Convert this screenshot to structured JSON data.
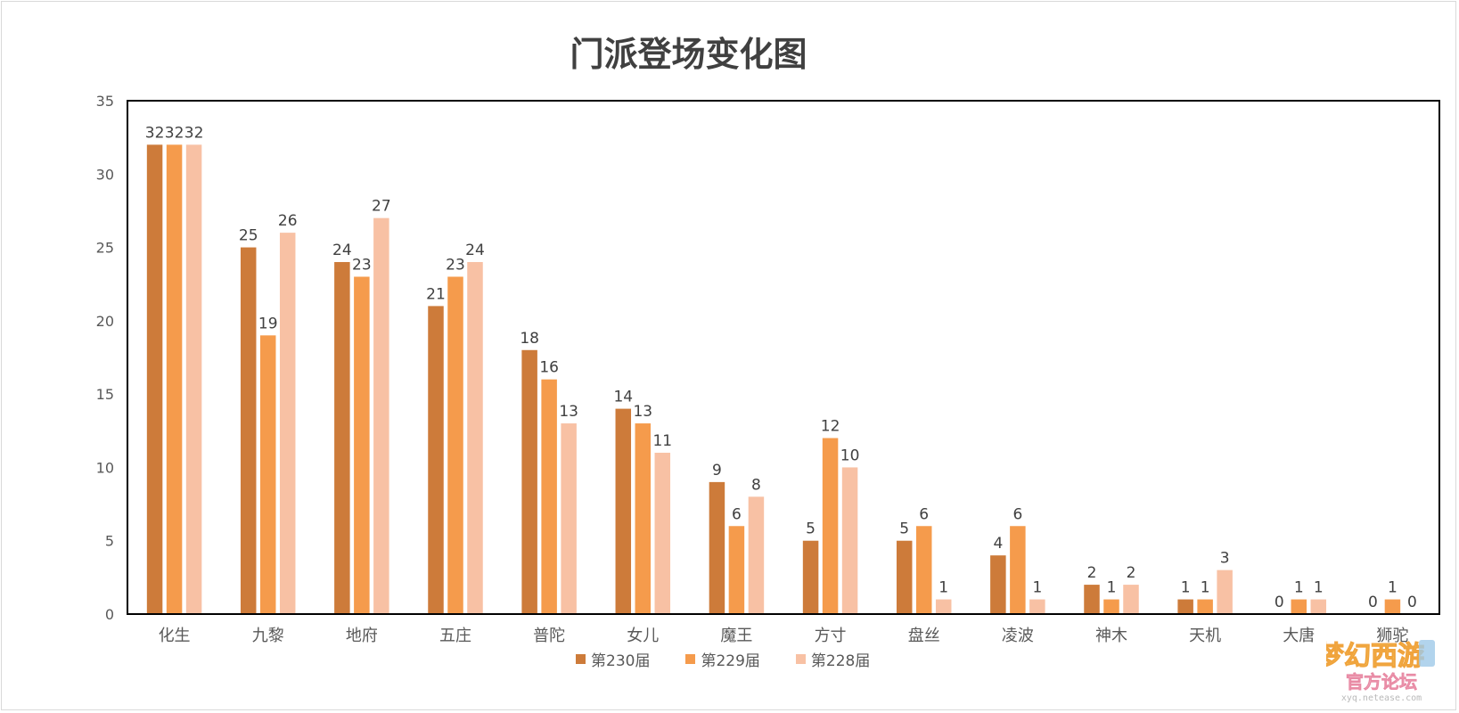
{
  "chart_data": {
    "type": "bar",
    "title": "门派登场变化图",
    "categories": [
      "化生",
      "九黎",
      "地府",
      "五庄",
      "普陀",
      "女儿",
      "魔王",
      "方寸",
      "盘丝",
      "凌波",
      "神木",
      "天机",
      "大唐",
      "狮驼"
    ],
    "series": [
      {
        "name": "第230届",
        "color": "#CD7B3A",
        "values": [
          32,
          25,
          24,
          21,
          18,
          14,
          9,
          5,
          5,
          4,
          2,
          1,
          0,
          0
        ]
      },
      {
        "name": "第229届",
        "color": "#F59B4C",
        "values": [
          32,
          19,
          23,
          23,
          16,
          13,
          6,
          12,
          6,
          6,
          1,
          1,
          1,
          1
        ]
      },
      {
        "name": "第228届",
        "color": "#F8C1A4",
        "values": [
          32,
          26,
          27,
          24,
          13,
          11,
          8,
          10,
          1,
          1,
          2,
          3,
          1,
          0
        ]
      }
    ],
    "ylim": [
      0,
      35
    ],
    "yticks": [
      0,
      5,
      10,
      15,
      20,
      25,
      30,
      35
    ],
    "xlabel": "",
    "ylabel": "",
    "grid": false,
    "legend_position": "bottom",
    "data_labels": true
  },
  "watermark": {
    "logo_text": "梦幻西游",
    "subtitle": "官方论坛",
    "url": "xyq.netease.com"
  }
}
